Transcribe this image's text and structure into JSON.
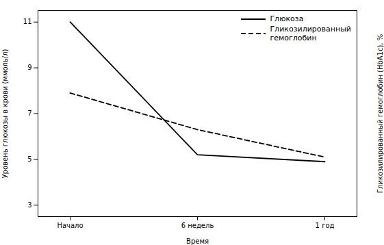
{
  "chart_data": {
    "type": "line",
    "categories": [
      "Начало",
      "6 недель",
      "1 год"
    ],
    "series": [
      {
        "name": "Глюкоза",
        "color": "#000000",
        "line_style": "solid",
        "values": [
          11.0,
          5.2,
          4.9
        ]
      },
      {
        "name": "Гликозилированный\nгемоглобин",
        "color": "#000000",
        "line_style": "dashed",
        "values": [
          7.9,
          6.3,
          5.1
        ]
      }
    ],
    "xlabel": "Время",
    "ylabel": "Уровень глюкозы в крови (ммоль/л)",
    "y2label": "Гликозилированный гемоглобин (HbA1c), %",
    "ylim": [
      2.5,
      11.5
    ],
    "yticks": [
      3,
      5,
      7,
      9,
      11
    ],
    "legend": "upper right",
    "grid": false
  }
}
